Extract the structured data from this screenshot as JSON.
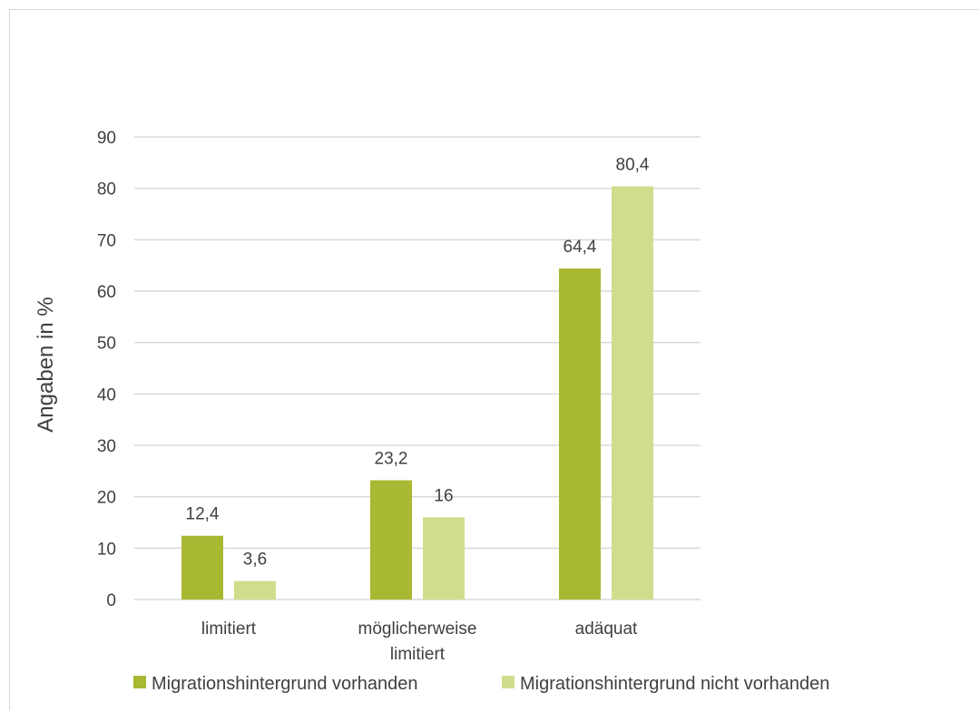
{
  "chart_data": {
    "type": "bar",
    "categories": [
      [
        "limitiert"
      ],
      [
        "möglicherweise",
        "limitiert"
      ],
      [
        "adäquat"
      ]
    ],
    "series": [
      {
        "name": "Migrationshintergrund vorhanden",
        "values": [
          12.4,
          23.2,
          64.4
        ],
        "labels": [
          "12,4",
          "23,2",
          "64,4"
        ],
        "color": "#a9b832"
      },
      {
        "name": "Migrationshintergrund nicht vorhanden",
        "values": [
          3.6,
          16,
          80.4
        ],
        "labels": [
          "3,6",
          "16",
          "80,4"
        ],
        "color": "#d1dd8c"
      }
    ],
    "ylabel": "Angaben in %",
    "ylim": [
      0,
      90
    ],
    "yticks": [
      0,
      10,
      20,
      30,
      40,
      50,
      60,
      70,
      80,
      90
    ],
    "grid": true,
    "legend_position": "bottom",
    "gridline_color": "#d9d9d9",
    "text_color": "#404040"
  }
}
